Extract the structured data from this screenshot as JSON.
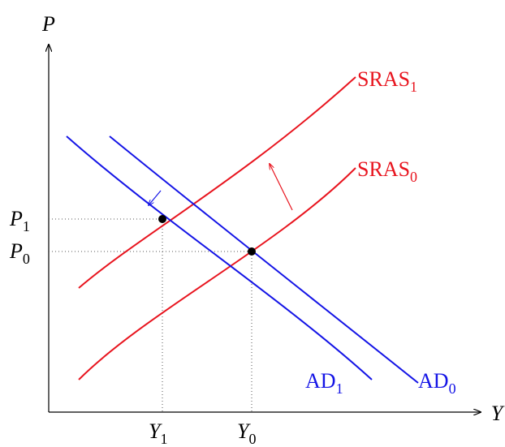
{
  "axes": {
    "y": "P",
    "x": "Y"
  },
  "curves": [
    {
      "base": "SRAS",
      "sub": "1"
    },
    {
      "base": "SRAS",
      "sub": "0"
    },
    {
      "base": "AD",
      "sub": "1"
    },
    {
      "base": "AD",
      "sub": "0"
    }
  ],
  "prices": [
    {
      "base": "P",
      "sub": "1"
    },
    {
      "base": "P",
      "sub": "0"
    }
  ],
  "outputs": [
    {
      "base": "Y",
      "sub": "1"
    },
    {
      "base": "Y",
      "sub": "0"
    }
  ]
}
